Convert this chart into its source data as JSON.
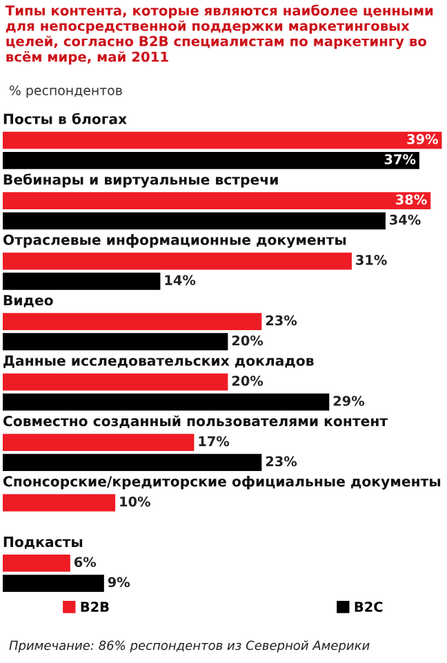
{
  "chart_data": {
    "type": "bar",
    "orientation": "horizontal",
    "title": "Типы контента, которые являются наиболее ценными для непосредственной поддержки маркетинговых целей, согласно B2B специалистам по маркетингу во всём мире, май 2011",
    "subtitle": "% респондентов",
    "categories": [
      "Посты в блогах",
      "Вебинары и виртуальные встречи",
      "Отраслевые информационные документы",
      "Видео",
      "Данные исследовательских докладов",
      "Совместно созданный пользователями контент",
      "Спонсорские/кредиторские официальные документы",
      "Подкасты"
    ],
    "series": [
      {
        "name": "B2B",
        "color": "#ee1c25",
        "values": [
          39,
          38,
          31,
          23,
          20,
          17,
          10,
          6
        ],
        "value_labels": [
          "39%",
          "38%",
          "31%",
          "23%",
          "20%",
          "17%",
          "10%",
          "6%"
        ]
      },
      {
        "name": "B2C",
        "color": "#000000",
        "values": [
          37,
          34,
          14,
          20,
          29,
          23,
          null,
          9
        ],
        "value_labels": [
          "37%",
          "34%",
          "14%",
          "20%",
          "29%",
          "23%",
          null,
          "9%"
        ]
      }
    ],
    "xlim": [
      0,
      39.3
    ],
    "legend": "bottom",
    "annotations": [
      "Примечание: 86% респондентов из Северной Америки"
    ]
  }
}
